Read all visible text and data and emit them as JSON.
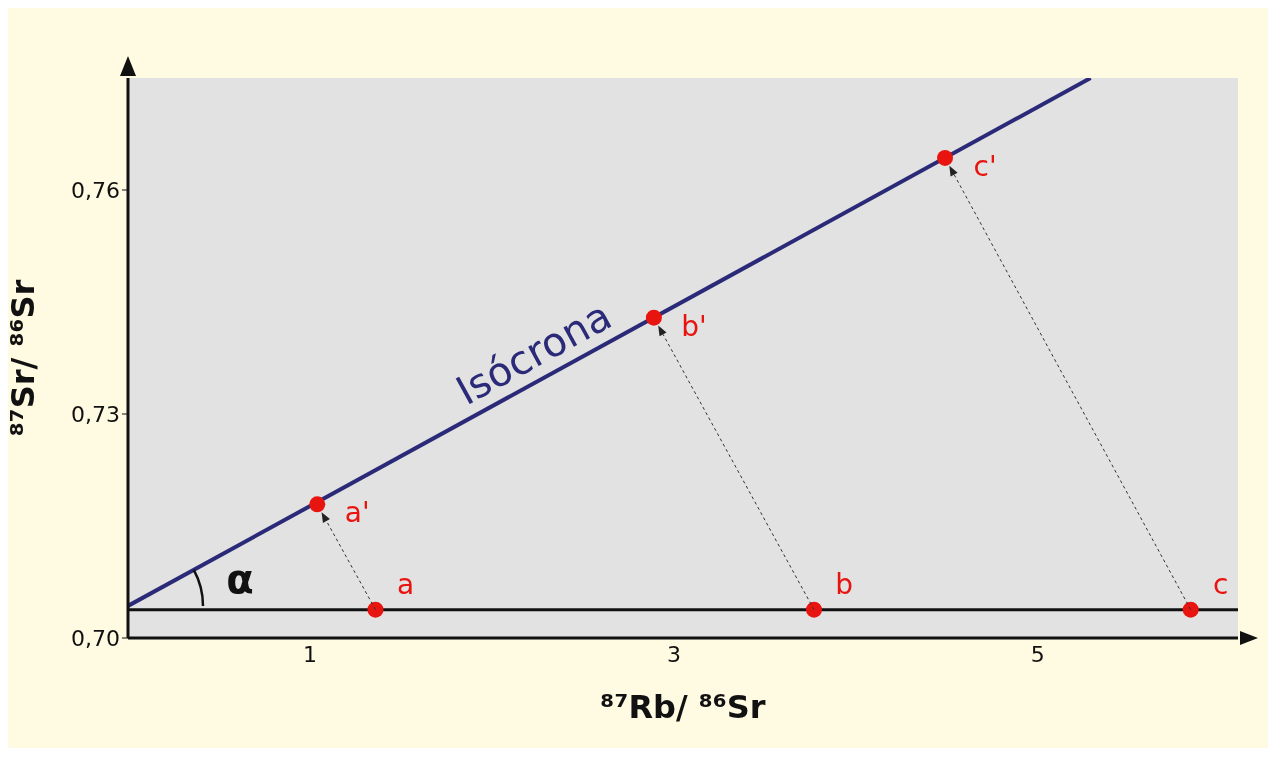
{
  "chart_data": {
    "type": "scatter",
    "xlabel": "⁸⁷Rb/ ⁸⁶Sr",
    "ylabel": "⁸⁷Sr/ ⁸⁶Sr",
    "xlim": [
      0,
      6.1
    ],
    "xticks": [
      1,
      3,
      5
    ],
    "ylim": [
      0.7,
      0.775
    ],
    "yticks": [
      {
        "value": 0.7,
        "label": "0,70"
      },
      {
        "value": 0.73,
        "label": "0,73"
      },
      {
        "value": 0.76,
        "label": "0,76"
      }
    ],
    "marker": "circle",
    "series": [
      {
        "type": "line",
        "marker": "none",
        "color": "#2b2a78",
        "x": [
          0,
          5.29
        ],
        "values": [
          0.7043,
          0.775
        ]
      },
      {
        "color": "#e8140f",
        "x": [
          1.36,
          3.77,
          5.84
        ],
        "values": [
          0.7038,
          0.7038,
          0.7038
        ]
      },
      {
        "color": "#e8140f",
        "x": [
          1.04,
          2.89,
          4.49
        ],
        "values": [
          0.7179,
          0.7429,
          0.7643
        ]
      }
    ],
    "ref_lines": [
      {
        "axis": "y",
        "value": 0.7038,
        "color": "#111111"
      }
    ],
    "annotations": [
      {
        "text": "Isócrona",
        "x": 2.3,
        "y": 0.735
      },
      "α",
      {
        "text": "a",
        "x": 1.36,
        "y": 0.7038
      },
      {
        "text": "b",
        "x": 3.77,
        "y": 0.7038
      },
      {
        "text": "c",
        "x": 5.84,
        "y": 0.7038
      },
      {
        "text": "a'",
        "x": 1.04,
        "y": 0.7179
      },
      {
        "text": "b'",
        "x": 2.89,
        "y": 0.7429
      },
      {
        "text": "c'",
        "x": 4.49,
        "y": 0.7643
      }
    ]
  }
}
